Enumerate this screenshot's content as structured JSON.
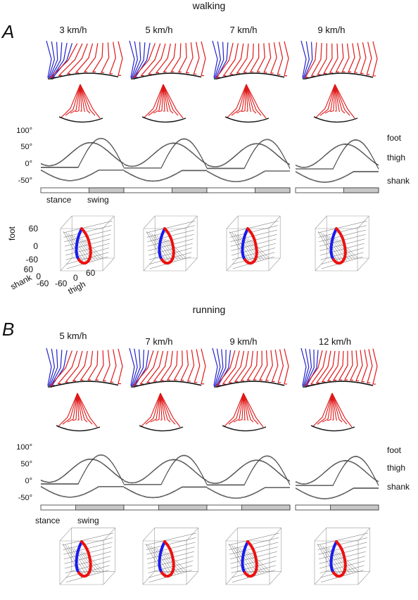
{
  "walking": {
    "title": "walking",
    "panel_letter": "A",
    "speeds": [
      "3 km/h",
      "5 km/h",
      "7 km/h",
      "9 km/h"
    ],
    "yticks": [
      "100°",
      "50°",
      "0°",
      "-50°"
    ],
    "angle_labels": [
      "foot",
      "thigh",
      "shank"
    ],
    "phase_labels": [
      "stance",
      "swing"
    ],
    "axes3d": {
      "foot": "foot",
      "shank": "shank",
      "thigh": "thigh",
      "foot_ticks": [
        "60",
        "0",
        "-60"
      ],
      "shank_ticks": [
        "60",
        "0",
        "-60"
      ],
      "thigh_ticks": [
        "-60",
        "0",
        "60"
      ]
    }
  },
  "running": {
    "title": "running",
    "panel_letter": "B",
    "speeds": [
      "5 km/h",
      "7 km/h",
      "9 km/h",
      "12 km/h"
    ],
    "yticks": [
      "100°",
      "50°",
      "0°",
      "-50°"
    ],
    "angle_labels": [
      "foot",
      "thigh",
      "shank"
    ],
    "phase_labels": [
      "stance",
      "swing"
    ]
  },
  "colors": {
    "stance_stick": "#2222cc",
    "swing_stick": "#e01818",
    "loop_blue": "#1a1aee",
    "loop_red": "#ee1010",
    "trace": "#444444",
    "phase_bar_fill": "#c8c8c8"
  }
}
